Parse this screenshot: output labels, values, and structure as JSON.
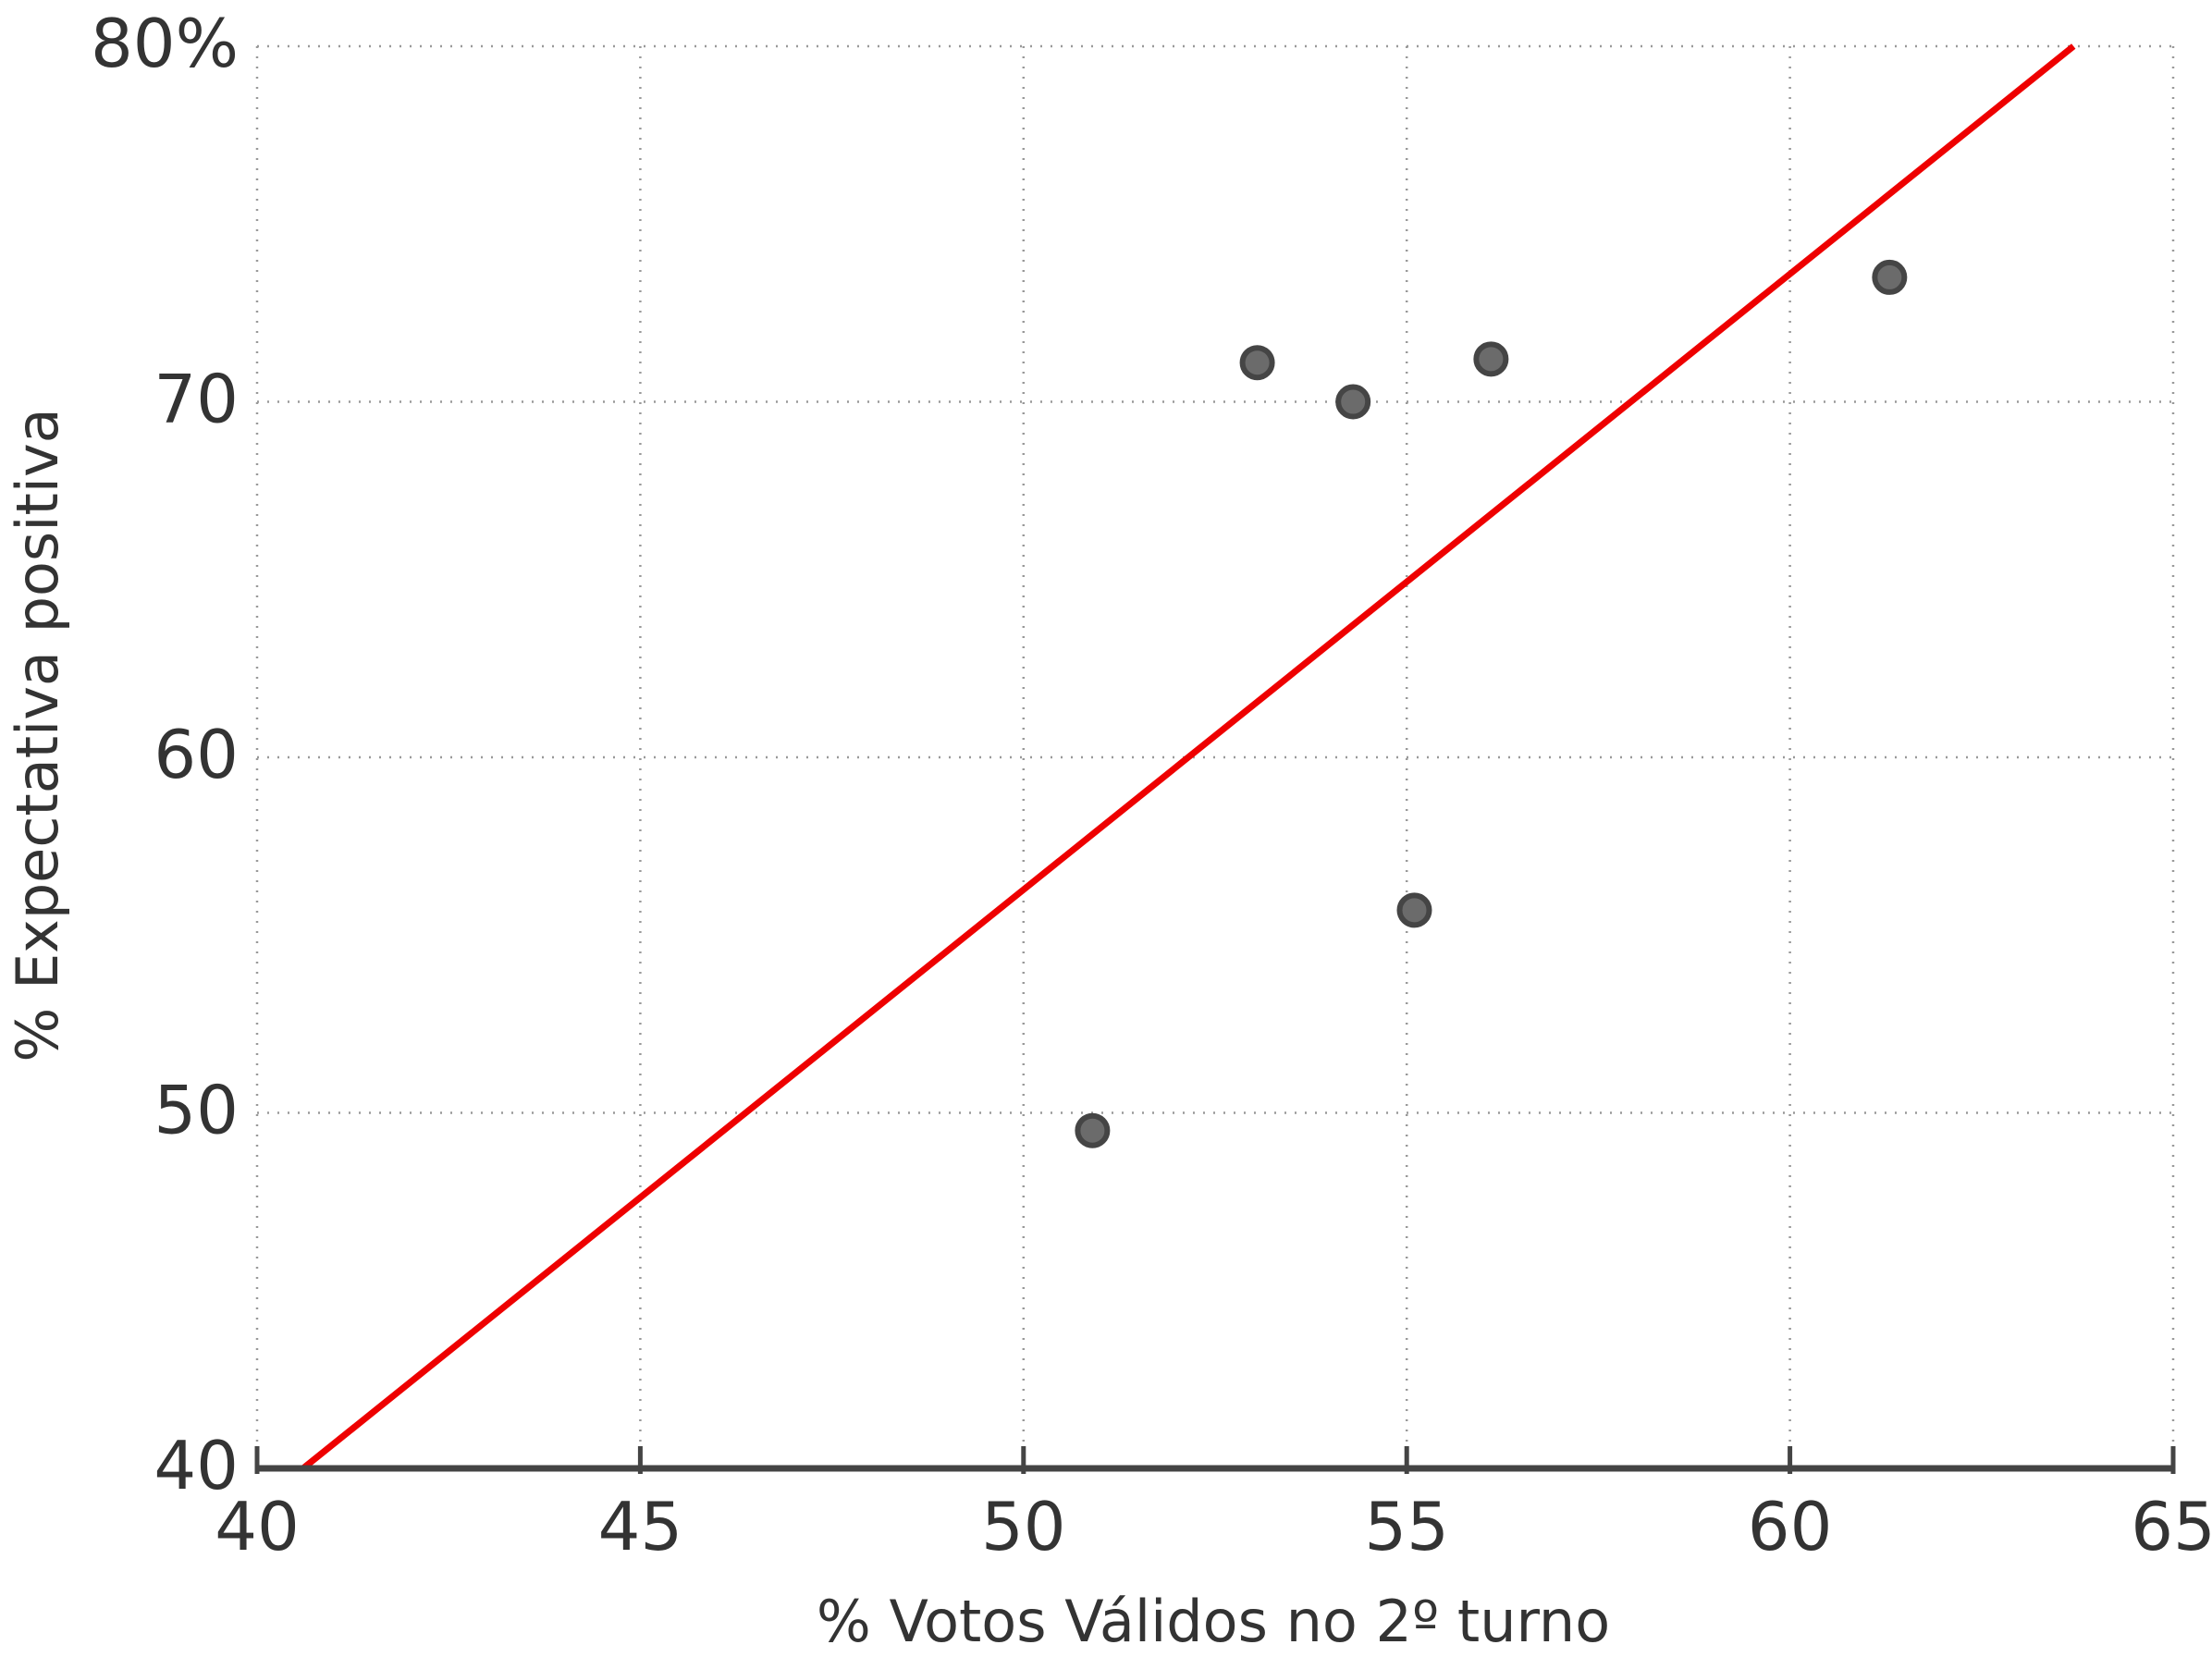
{
  "chart_data": {
    "type": "scatter",
    "title": "",
    "xlabel": "% Votos Válidos no 2º turno",
    "ylabel": "% Expectativa positiva",
    "xlim": [
      40,
      65
    ],
    "ylim": [
      40,
      80
    ],
    "x_ticks": [
      40,
      45,
      50,
      55,
      60,
      65
    ],
    "x_tick_labels": [
      "40",
      "45",
      "50",
      "55",
      "60",
      "65"
    ],
    "y_ticks": [
      40,
      50,
      60,
      70,
      80
    ],
    "y_tick_labels": [
      "40",
      "50",
      "60",
      "70",
      "80%"
    ],
    "grid": true,
    "grid_style": "dotted",
    "points": [
      {
        "x": 50.9,
        "y": 49.5
      },
      {
        "x": 53.05,
        "y": 71.1
      },
      {
        "x": 54.3,
        "y": 70.0
      },
      {
        "x": 55.1,
        "y": 55.7
      },
      {
        "x": 56.1,
        "y": 71.2
      },
      {
        "x": 61.3,
        "y": 73.5
      }
    ],
    "trend_line": {
      "x1": 40.6,
      "y1": 40.0,
      "x2": 63.7,
      "y2": 80.0
    },
    "colors": {
      "point_fill": "#6b6b6b",
      "point_stroke": "#454545",
      "trend_line": "#ee0000",
      "grid": "#999999",
      "axis": "#444444",
      "text": "#333333"
    }
  }
}
